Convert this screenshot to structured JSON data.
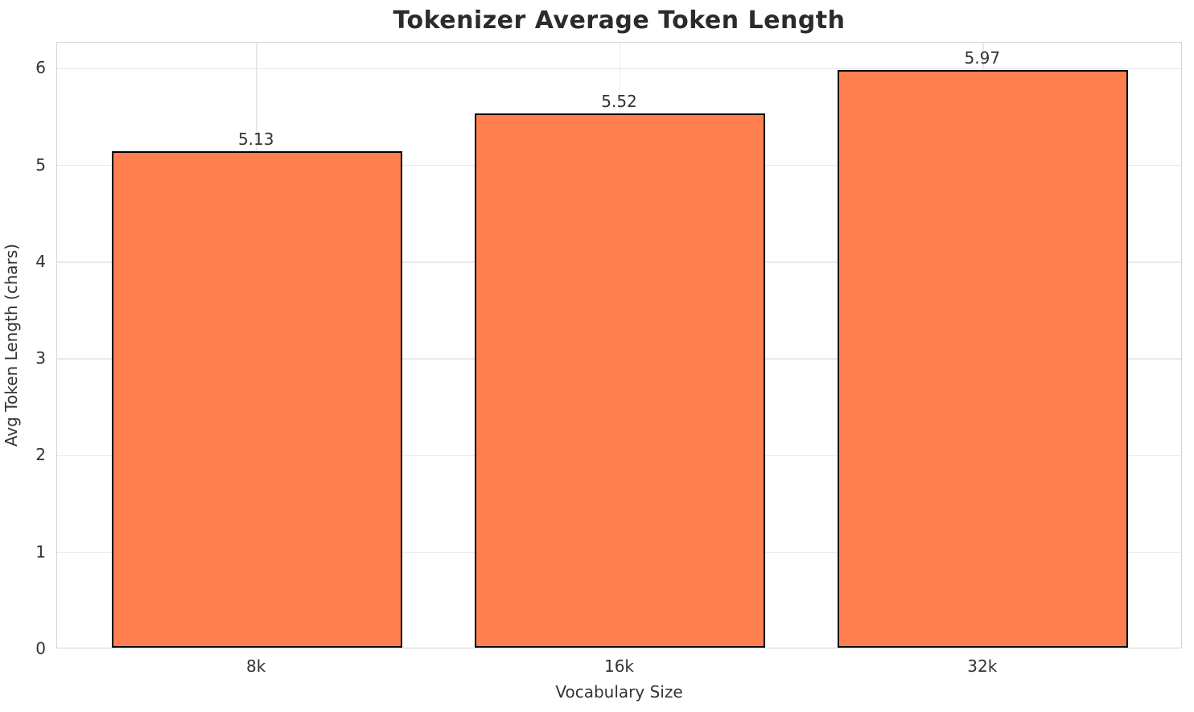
{
  "chart_data": {
    "type": "bar",
    "title": "Tokenizer Average Token Length",
    "xlabel": "Vocabulary Size",
    "ylabel": "Avg Token Length (chars)",
    "categories": [
      "8k",
      "16k",
      "32k"
    ],
    "values": [
      5.13,
      5.52,
      5.97
    ],
    "value_labels": [
      "5.13",
      "5.52",
      "5.97"
    ],
    "yticks": [
      0,
      1,
      2,
      3,
      4,
      5,
      6
    ],
    "ylim": [
      0,
      6.27
    ],
    "grid": true,
    "legend": "none",
    "bar_color": "#ff7f50",
    "bar_edge_color": "#000000",
    "grid_color": "#e9e9e9",
    "axes_edge_color": "#d5d5d5",
    "text_color": "#333333",
    "title_color": "#2b2b2b"
  }
}
